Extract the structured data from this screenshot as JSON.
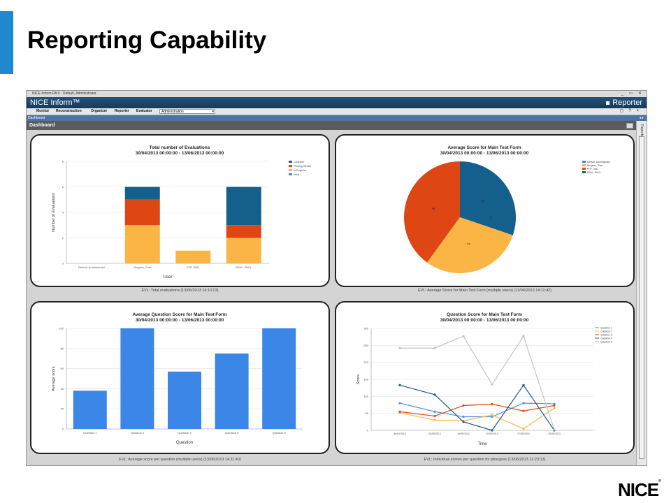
{
  "slide": {
    "title": "Reporting Capability",
    "logo": "NICE",
    "logo_mark": "®"
  },
  "window": {
    "title": "NICE Inform R8.0 - Default, Administrator",
    "brand": "NICE Inform™",
    "module": "Reporter",
    "controls": "_ ▭ ✕"
  },
  "menu": {
    "items": [
      "Monitor",
      "Reconstruction",
      "Organizer",
      "Reporter",
      "Evaluator"
    ],
    "selected": "Administration",
    "right_icons": "◻ ? ×"
  },
  "breadcrumb": {
    "label": "Dashboard",
    "arrows": "◂ ▸"
  },
  "dashboard": {
    "title": "Dashboard",
    "side_label": "Reports"
  },
  "colors": {
    "blue": "#3b86e6",
    "orange": "#fbb545",
    "red": "#de4713",
    "navy": "#155f8d",
    "gray": "#c2c2c2",
    "accent": "#1f88cf"
  },
  "chart_data": [
    {
      "type": "bar",
      "title": "Total number of Evaluations",
      "subtitle": "30/04/2013 00:00:00 - 13/06/2013 00:00:00",
      "xlabel": "User",
      "ylabel": "Number of Evaluations",
      "ylim": [
        0,
        8
      ],
      "yticks": [
        0,
        2,
        4,
        6,
        8
      ],
      "stacked": true,
      "categories": [
        "Default, Administrator",
        "Burgess, Pete",
        "FFP, ODD",
        "PAUL, PAUL"
      ],
      "series": [
        {
          "name": "In Progress",
          "color": "#fbb545",
          "values": [
            0,
            3,
            1,
            2
          ]
        },
        {
          "name": "Pending Review",
          "color": "#de4713",
          "values": [
            0,
            2,
            0,
            1
          ]
        },
        {
          "name": "Complete",
          "color": "#155f8d",
          "values": [
            0,
            1,
            0,
            3
          ]
        }
      ],
      "legend": [
        "Complete",
        "Pending Review",
        "In Progress",
        "None"
      ],
      "legend_colors": [
        "#155f8d",
        "#de4713",
        "#fbb545",
        "#3b86e6"
      ],
      "legend_position": "top-right",
      "caption": "EVL: Total evaluations (13/06/2013 14:10:23)"
    },
    {
      "type": "pie",
      "title": "Average Score for Main Test Form",
      "subtitle": "30/04/2013 00:00:00 - 13/06/2013 00:00:00",
      "slices": [
        {
          "label": "Default, Administrator",
          "value": 0,
          "color": "#3b86e6",
          "text": "0"
        },
        {
          "label": "Burgess, Pete",
          "value": 73,
          "color": "#fbb545",
          "text": "73"
        },
        {
          "label": "FFP, ODD",
          "value": 98,
          "color": "#de4713",
          "text": "98"
        },
        {
          "label": "PAUL, PAUL",
          "value": 74,
          "color": "#155f8d",
          "text": "74"
        }
      ],
      "legend_position": "top-right",
      "caption": "EVL: Average Score for Main Test Form (multiple users) (13/06/2013 14:11:42)"
    },
    {
      "type": "bar",
      "title": "Average Question Score for Main Test Form",
      "subtitle": "30/04/2013 00:00:00 - 13/06/2013 00:00:00",
      "xlabel": "Question",
      "ylabel": "Average score",
      "ylim": [
        0,
        100
      ],
      "yticks": [
        0,
        20,
        40,
        60,
        80,
        100
      ],
      "categories": [
        "Question 1",
        "Question 2",
        "Question 3",
        "Question 4",
        "Question 5"
      ],
      "values": [
        38,
        100,
        57,
        75,
        100
      ],
      "color": "#3b86e6",
      "caption": "EVL: Average score per question (multiple users) (13/06/2013 14:11:40)"
    },
    {
      "type": "line",
      "title": "Question Score for Main Test Form",
      "subtitle": "30/04/2013 00:00:00 - 13/06/2013 00:00:00",
      "xlabel": "Time",
      "ylabel": "Score",
      "ylim": [
        0,
        300
      ],
      "yticks": [
        0,
        50,
        100,
        150,
        200,
        250,
        300
      ],
      "x": [
        "30/04/2013",
        "03/05/2013",
        "16/05/2013",
        "20/05/2013",
        "27/05/2013",
        "30/05/2013"
      ],
      "series": [
        {
          "name": "Question 1",
          "color": "#4a90e2",
          "values": [
            80,
            55,
            40,
            40,
            80,
            78
          ]
        },
        {
          "name": "Question 2",
          "color": "#fbb545",
          "values": [
            52,
            30,
            28,
            45,
            5,
            65
          ]
        },
        {
          "name": "Question 3",
          "color": "#de4713",
          "values": [
            55,
            42,
            73,
            77,
            57,
            73
          ]
        },
        {
          "name": "Question 4",
          "color": "#155f8d",
          "values": [
            133,
            105,
            25,
            0,
            133,
            0
          ]
        },
        {
          "name": "Question 5",
          "color": "#c2c2c2",
          "values": [
            242,
            242,
            277,
            135,
            277,
            2
          ]
        }
      ],
      "legend_position": "top-right",
      "caption": "EVL: Individual scores per question for pburgess (13/06/2013 12:23:13)"
    }
  ]
}
